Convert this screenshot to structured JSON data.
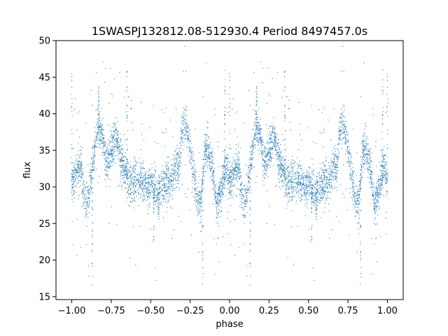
{
  "chart_data": {
    "type": "scatter",
    "title": "1SWASPJ132812.08-512930.4 Period 8497457.0s",
    "xlabel": "phase",
    "ylabel": "flux",
    "xlim": [
      -1.1,
      1.1
    ],
    "ylim": [
      14.6,
      50
    ],
    "xticks": [
      -1.0,
      -0.75,
      -0.5,
      -0.25,
      0.0,
      0.25,
      0.5,
      0.75,
      1.0
    ],
    "xtick_labels": [
      "−1.00",
      "−0.75",
      "−0.50",
      "−0.25",
      "0.00",
      "0.25",
      "0.50",
      "0.75",
      "1.00"
    ],
    "yticks": [
      15,
      20,
      25,
      30,
      35,
      40,
      45,
      50
    ],
    "ytick_labels": [
      "15",
      "20",
      "25",
      "30",
      "35",
      "40",
      "45",
      "50"
    ],
    "grid": false,
    "point_color": "#1f77b4",
    "profile": [
      [
        0.0,
        30.5
      ],
      [
        0.02,
        31.5
      ],
      [
        0.04,
        32.5
      ],
      [
        0.06,
        33.0
      ],
      [
        0.08,
        28.0
      ],
      [
        0.1,
        27.5
      ],
      [
        0.12,
        31.0
      ],
      [
        0.14,
        34.0
      ],
      [
        0.16,
        37.5
      ],
      [
        0.18,
        38.5
      ],
      [
        0.2,
        36.0
      ],
      [
        0.22,
        33.0
      ],
      [
        0.24,
        34.0
      ],
      [
        0.26,
        35.5
      ],
      [
        0.28,
        36.5
      ],
      [
        0.3,
        35.5
      ],
      [
        0.32,
        33.0
      ],
      [
        0.34,
        32.0
      ],
      [
        0.36,
        31.0
      ],
      [
        0.38,
        30.5
      ],
      [
        0.4,
        31.0
      ],
      [
        0.42,
        30.5
      ],
      [
        0.44,
        31.0
      ],
      [
        0.46,
        30.0
      ],
      [
        0.48,
        29.5
      ],
      [
        0.5,
        31.0
      ],
      [
        0.52,
        30.5
      ],
      [
        0.54,
        28.5
      ],
      [
        0.56,
        30.0
      ],
      [
        0.58,
        30.5
      ],
      [
        0.6,
        31.0
      ],
      [
        0.62,
        30.5
      ],
      [
        0.64,
        31.5
      ],
      [
        0.66,
        33.0
      ],
      [
        0.68,
        32.5
      ],
      [
        0.7,
        38.0
      ],
      [
        0.72,
        38.5
      ],
      [
        0.74,
        37.0
      ],
      [
        0.76,
        33.5
      ],
      [
        0.78,
        30.5
      ],
      [
        0.8,
        28.0
      ],
      [
        0.82,
        27.5
      ],
      [
        0.84,
        34.5
      ],
      [
        0.86,
        35.5
      ],
      [
        0.88,
        33.5
      ],
      [
        0.9,
        31.0
      ],
      [
        0.92,
        27.0
      ],
      [
        0.94,
        29.0
      ],
      [
        0.96,
        31.0
      ],
      [
        0.98,
        33.0
      ],
      [
        1.0,
        30.5
      ]
    ],
    "spikes": [
      [
        0.0,
        45.5
      ],
      [
        0.13,
        16.5
      ],
      [
        0.17,
        44.0
      ],
      [
        0.35,
        46.5
      ],
      [
        0.52,
        22.5
      ],
      [
        0.55,
        25.5
      ],
      [
        0.83,
        16.5
      ],
      [
        0.97,
        46.0
      ]
    ]
  }
}
